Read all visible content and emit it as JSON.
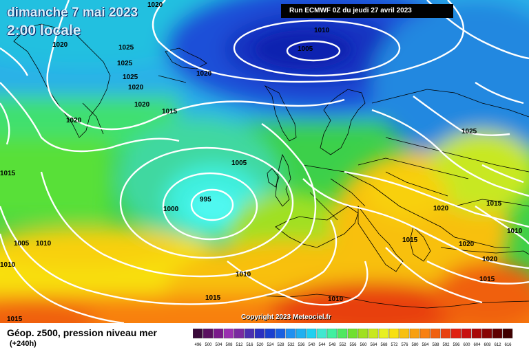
{
  "header": {
    "date": "dimanche 7 mai 2023",
    "time": "2:00 locale",
    "run": "Run ECMWF 0Z du jeudi 27 avril 2023"
  },
  "copyright": "Copyright 2023 Meteociel.fr",
  "footer": {
    "title": "Géop. z500, pression niveau mer",
    "subtitle": "(+240h)"
  },
  "isobar_labels": [
    "1020",
    "1020",
    "1025",
    "1025",
    "1025",
    "1020",
    "1020",
    "1020",
    "1015",
    "1010",
    "1005",
    "1020",
    "1025",
    "1005",
    "1000",
    "995",
    "1015",
    "1005",
    "1010",
    "1010",
    "1015",
    "1010",
    "1020",
    "1015",
    "1010",
    "1015",
    "1020",
    "1020",
    "1015",
    "1010",
    "1015"
  ],
  "legend": {
    "ticks": [
      "496",
      "500",
      "504",
      "508",
      "512",
      "516",
      "520",
      "524",
      "528",
      "532",
      "536",
      "540",
      "544",
      "548",
      "552",
      "556",
      "560",
      "564",
      "568",
      "572",
      "576",
      "580",
      "584",
      "588",
      "592",
      "596",
      "600",
      "604",
      "608",
      "612",
      "616"
    ],
    "colors": [
      "#3a0a3a",
      "#5a1060",
      "#7a1a8a",
      "#9a30b0",
      "#7a2aa0",
      "#4a30b0",
      "#2a30c0",
      "#1a40d0",
      "#1a60e0",
      "#2090f0",
      "#20b0f0",
      "#20d0f0",
      "#40e8d0",
      "#40f0a0",
      "#50e860",
      "#70e030",
      "#a0e020",
      "#c8e820",
      "#e8f020",
      "#f8e010",
      "#f8c010",
      "#f8a010",
      "#f88010",
      "#f06010",
      "#e84010",
      "#e02010",
      "#c81010",
      "#a80808",
      "#880404",
      "#600000",
      "#400000"
    ]
  },
  "colors": {
    "isobar": "#ffffff",
    "coastline": "#000000"
  }
}
